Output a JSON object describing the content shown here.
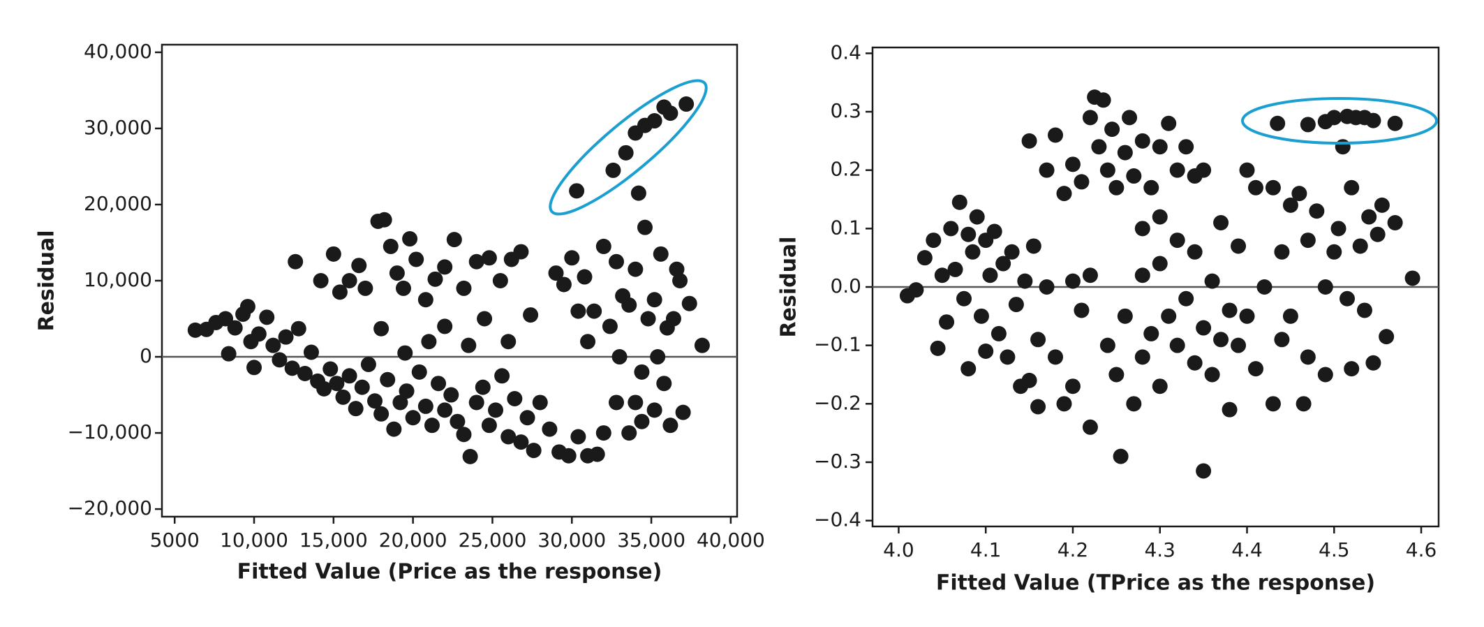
{
  "chart_data": [
    {
      "type": "scatter",
      "x_label": "Fitted Value (Price as the response)",
      "y_label": "Residual",
      "color": "#1a1a1a",
      "zero_line": true,
      "xlim": [
        4200,
        40400
      ],
      "ylim": [
        -21000,
        41000
      ],
      "xticks": [
        5000,
        {
          "value": 10000,
          "label": "10,000"
        },
        {
          "value": 15000,
          "label": "15,000"
        },
        {
          "value": 20000,
          "label": "20,000"
        },
        {
          "value": 25000,
          "label": "25,000"
        },
        {
          "value": 30000,
          "label": "30,000"
        },
        {
          "value": 35000,
          "label": "35,000"
        },
        {
          "value": 40000,
          "label": "40,000"
        }
      ],
      "yticks": [
        {
          "value": -20000,
          "label": "−20,000"
        },
        {
          "value": -10000,
          "label": "−10,000"
        },
        0,
        {
          "value": 10000,
          "label": "10,000"
        },
        {
          "value": 20000,
          "label": "20,000"
        },
        {
          "value": 30000,
          "label": "30,000"
        },
        {
          "value": 40000,
          "label": "40,000"
        }
      ],
      "x": [
        6300,
        7000,
        7600,
        8200,
        8400,
        8800,
        9300,
        9600,
        9800,
        10000,
        10300,
        10800,
        11200,
        11600,
        12000,
        12400,
        12800,
        13200,
        13600,
        14000,
        14400,
        14800,
        15200,
        15600,
        16000,
        16400,
        16800,
        17200,
        17600,
        18000,
        18400,
        18800,
        19200,
        19600,
        20000,
        20400,
        20800,
        21200,
        21600,
        22000,
        22400,
        22800,
        23200,
        23600,
        24000,
        24400,
        24800,
        25200,
        25600,
        26000,
        26400,
        26800,
        27200,
        27600,
        28000,
        28600,
        29200,
        29800,
        30400,
        31000,
        31600,
        32000,
        32800,
        33600,
        34400,
        35200,
        36200,
        37000,
        12600,
        14200,
        15000,
        15400,
        16000,
        16600,
        17000,
        17800,
        18200,
        18600,
        19000,
        19400,
        19800,
        20200,
        20800,
        21400,
        22000,
        22600,
        23200,
        24000,
        24800,
        25500,
        26200,
        26800,
        27400,
        18000,
        19500,
        21000,
        22000,
        23500,
        24500,
        26000,
        29000,
        29500,
        30000,
        30400,
        30800,
        31000,
        31400,
        32000,
        32400,
        32800,
        33200,
        33600,
        34000,
        34400,
        34600,
        34800,
        35200,
        35600,
        36000,
        36400,
        36600,
        36800,
        37400,
        38200,
        33000,
        35400,
        34000,
        35800,
        30300,
        32600,
        33400,
        34000,
        34600,
        35200,
        35800,
        36200,
        37200,
        34200
      ],
      "y": [
        3500,
        3600,
        4500,
        5000,
        400,
        3800,
        5600,
        6600,
        2000,
        -1400,
        3000,
        5200,
        1500,
        -400,
        2600,
        -1500,
        3700,
        -2200,
        600,
        -3200,
        -4200,
        -1600,
        -3500,
        -5300,
        -2500,
        -6800,
        -4000,
        -1000,
        -5800,
        -7500,
        -3000,
        -9500,
        -6000,
        -4500,
        -8000,
        -2000,
        -6500,
        -9000,
        -3500,
        -7000,
        -5000,
        -8500,
        -10200,
        -13100,
        -6000,
        -4000,
        -9000,
        -7000,
        -2500,
        -10500,
        -5500,
        -11200,
        -8000,
        -12300,
        -6000,
        -9500,
        -12500,
        -13000,
        -10500,
        -13000,
        -12800,
        -10000,
        -6000,
        -10000,
        -8500,
        -7000,
        -9000,
        -7300,
        12500,
        10000,
        13500,
        8500,
        10000,
        12000,
        9000,
        17800,
        18000,
        14500,
        11000,
        9000,
        15500,
        12800,
        7500,
        10200,
        11800,
        15400,
        9000,
        12500,
        13000,
        10000,
        12800,
        13800,
        5500,
        3700,
        500,
        2000,
        4000,
        1500,
        5000,
        2000,
        11000,
        9500,
        13000,
        6000,
        10500,
        2000,
        6000,
        14500,
        4000,
        12500,
        8000,
        6800,
        11500,
        -2000,
        17000,
        5000,
        7500,
        13500,
        3800,
        5000,
        11500,
        10000,
        7000,
        1500,
        0,
        0,
        -6000,
        -3500,
        21800,
        24500,
        26800,
        29400,
        30400,
        31000,
        32800,
        32000,
        33200,
        21500
      ]
    },
    {
      "type": "scatter",
      "x_label": "Fitted Value (TPrice as the response)",
      "y_label": "Residual",
      "color": "#1a1a1a",
      "zero_line": true,
      "xlim": [
        3.97,
        4.62
      ],
      "ylim": [
        -0.41,
        0.41
      ],
      "xticks": [
        {
          "value": 4.0,
          "label": "4.0"
        },
        4.1,
        4.2,
        4.3,
        4.4,
        4.5,
        4.6
      ],
      "yticks": [
        {
          "value": -0.4,
          "label": "−0.4"
        },
        {
          "value": -0.3,
          "label": "−0.3"
        },
        {
          "value": -0.2,
          "label": "−0.2"
        },
        {
          "value": -0.1,
          "label": "−0.1"
        },
        {
          "value": 0,
          "label": "0.0"
        },
        0.1,
        0.2,
        0.3,
        0.4
      ],
      "x": [
        4.01,
        4.02,
        4.03,
        4.04,
        4.045,
        4.05,
        4.055,
        4.06,
        4.065,
        4.07,
        4.075,
        4.08,
        4.08,
        4.085,
        4.09,
        4.095,
        4.1,
        4.1,
        4.105,
        4.11,
        4.115,
        4.12,
        4.125,
        4.13,
        4.135,
        4.14,
        4.145,
        4.15,
        4.155,
        4.16,
        4.16,
        4.17,
        4.18,
        4.19,
        4.2,
        4.2,
        4.21,
        4.22,
        4.22,
        4.15,
        4.17,
        4.18,
        4.19,
        4.2,
        4.21,
        4.22,
        4.225,
        4.23,
        4.235,
        4.24,
        4.245,
        4.25,
        4.26,
        4.265,
        4.27,
        4.28,
        4.29,
        4.3,
        4.31,
        4.32,
        4.33,
        4.34,
        4.35,
        4.3,
        4.28,
        4.24,
        4.25,
        4.255,
        4.26,
        4.27,
        4.28,
        4.28,
        4.29,
        4.3,
        4.3,
        4.31,
        4.32,
        4.32,
        4.33,
        4.34,
        4.34,
        4.35,
        4.35,
        4.36,
        4.36,
        4.37,
        4.37,
        4.38,
        4.38,
        4.39,
        4.39,
        4.4,
        4.4,
        4.41,
        4.41,
        4.42,
        4.43,
        4.44,
        4.45,
        4.43,
        4.44,
        4.45,
        4.46,
        4.465,
        4.47,
        4.47,
        4.48,
        4.49,
        4.49,
        4.5,
        4.505,
        4.51,
        4.515,
        4.52,
        4.52,
        4.53,
        4.535,
        4.54,
        4.545,
        4.55,
        4.555,
        4.56,
        4.57,
        4.59,
        4.435,
        4.47,
        4.49,
        4.5,
        4.515,
        4.525,
        4.535,
        4.545,
        4.57
      ],
      "y": [
        -0.015,
        -0.005,
        0.05,
        0.08,
        -0.105,
        0.02,
        -0.06,
        0.1,
        0.03,
        0.145,
        -0.02,
        0.09,
        -0.14,
        0.06,
        0.12,
        -0.05,
        0.08,
        -0.11,
        0.02,
        0.095,
        -0.08,
        0.04,
        -0.12,
        0.06,
        -0.03,
        -0.17,
        0.01,
        -0.16,
        0.07,
        -0.09,
        -0.205,
        0.0,
        -0.12,
        -0.2,
        0.01,
        -0.17,
        -0.04,
        -0.24,
        0.02,
        0.25,
        0.2,
        0.26,
        0.16,
        0.21,
        0.18,
        0.29,
        0.325,
        0.24,
        0.32,
        0.2,
        0.27,
        0.17,
        0.23,
        0.29,
        0.19,
        0.25,
        0.17,
        0.24,
        0.28,
        0.2,
        0.24,
        0.19,
        0.2,
        0.12,
        0.1,
        -0.1,
        -0.15,
        -0.29,
        -0.05,
        -0.2,
        0.02,
        -0.12,
        -0.08,
        -0.17,
        0.04,
        -0.05,
        -0.1,
        0.08,
        -0.02,
        -0.13,
        0.06,
        -0.315,
        -0.07,
        0.01,
        -0.15,
        -0.09,
        0.11,
        -0.04,
        -0.21,
        -0.1,
        0.07,
        -0.05,
        0.2,
        -0.14,
        0.17,
        0.0,
        -0.2,
        -0.09,
        -0.05,
        0.17,
        0.06,
        0.14,
        0.16,
        -0.2,
        0.08,
        -0.12,
        0.13,
        0.0,
        -0.15,
        0.06,
        0.1,
        0.24,
        -0.02,
        0.17,
        -0.14,
        0.07,
        -0.04,
        0.12,
        -0.13,
        0.09,
        0.14,
        -0.085,
        0.11,
        0.015,
        0.28,
        0.278,
        0.283,
        0.29,
        0.292,
        0.29,
        0.29,
        0.285,
        0.28
      ]
    }
  ]
}
